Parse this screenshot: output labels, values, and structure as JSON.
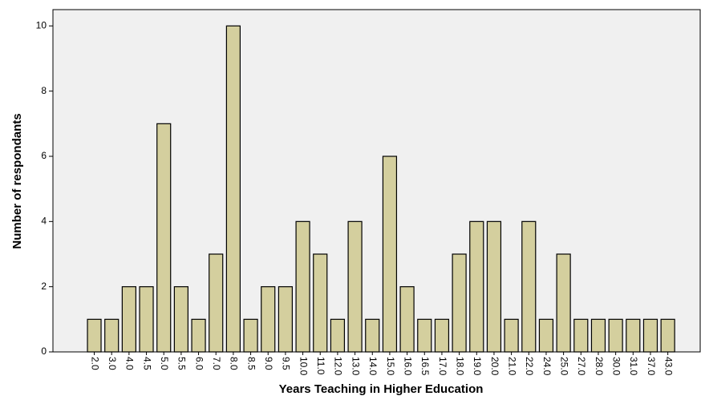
{
  "chart_data": {
    "type": "bar",
    "x_label": "Years Teaching in Higher Education",
    "y_label": "Number of respondants",
    "categories": [
      "2.0",
      "3.0",
      "4.0",
      "4.5",
      "5.0",
      "5.5",
      "6.0",
      "7.0",
      "8.0",
      "8.5",
      "9.0",
      "9.5",
      "10.0",
      "11.0",
      "12.0",
      "13.0",
      "14.0",
      "15.0",
      "16.0",
      "16.5",
      "17.0",
      "18.0",
      "19.0",
      "20.0",
      "21.0",
      "22.0",
      "24.0",
      "25.0",
      "27.0",
      "28.0",
      "30.0",
      "31.0",
      "37.0",
      "43.0"
    ],
    "values": [
      1,
      1,
      2,
      2,
      7,
      2,
      1,
      3,
      10,
      1,
      2,
      2,
      4,
      3,
      1,
      4,
      1,
      6,
      2,
      1,
      1,
      3,
      4,
      4,
      1,
      4,
      1,
      3,
      1,
      1,
      1,
      1,
      1,
      1
    ],
    "color": "#d4cf9e",
    "ylim": [
      0,
      10.5
    ],
    "yticks": [
      0,
      2,
      4,
      6,
      8,
      10
    ],
    "grid": false
  }
}
